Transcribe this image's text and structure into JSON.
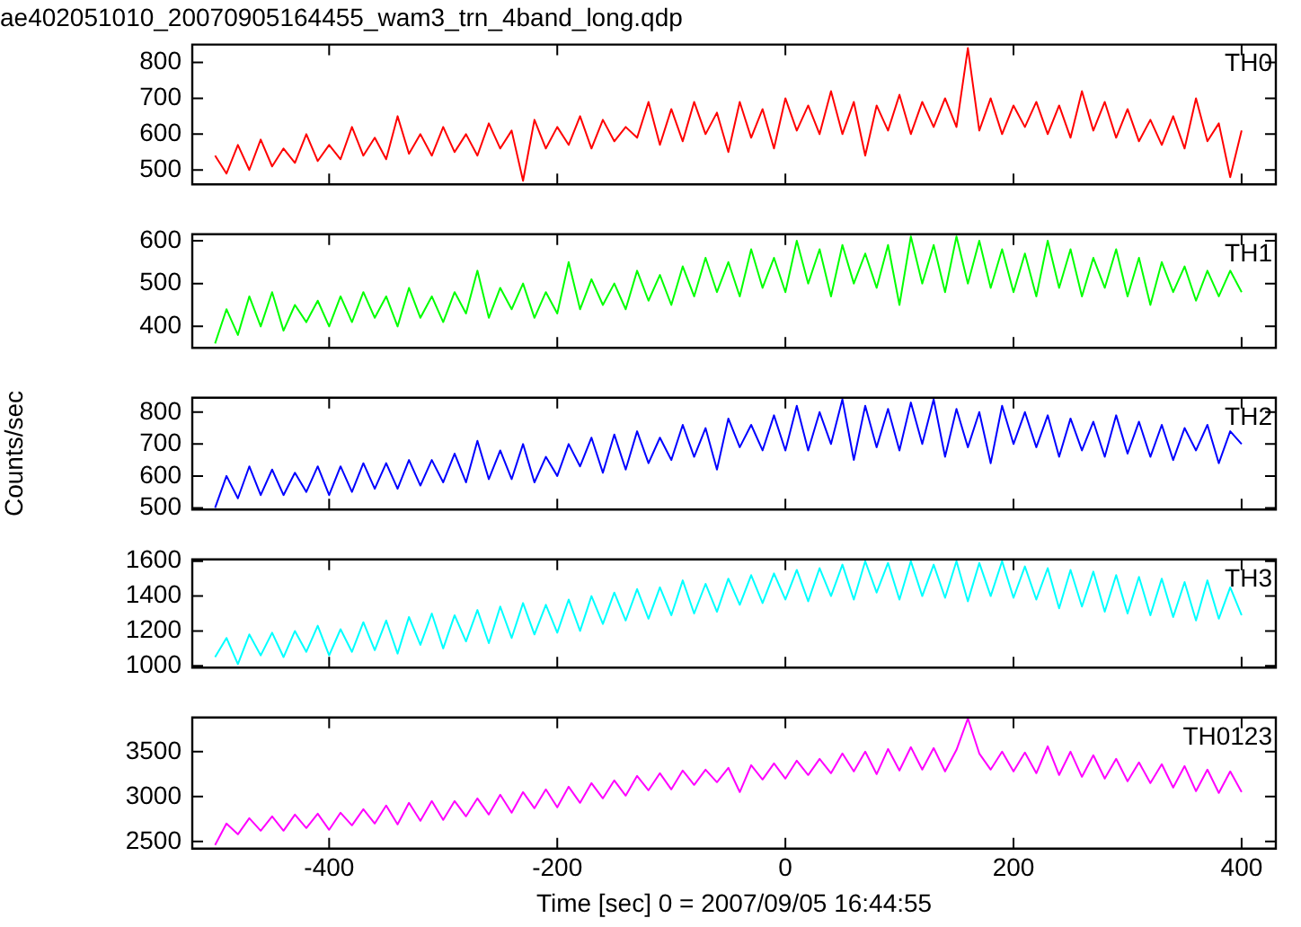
{
  "chart_data": [
    {
      "type": "line",
      "title": "ae402051010_20070905164455_wam3_trn_4band_long.qdp",
      "x": [
        -500,
        -490,
        -480,
        -470,
        -460,
        -450,
        -440,
        -430,
        -420,
        -410,
        -400,
        -390,
        -380,
        -370,
        -360,
        -350,
        -340,
        -330,
        -320,
        -310,
        -300,
        -290,
        -280,
        -270,
        -260,
        -250,
        -240,
        -230,
        -220,
        -210,
        -200,
        -190,
        -180,
        -170,
        -160,
        -150,
        -140,
        -130,
        -120,
        -110,
        -100,
        -90,
        -80,
        -70,
        -60,
        -50,
        -40,
        -30,
        -20,
        -10,
        0,
        10,
        20,
        30,
        40,
        50,
        60,
        70,
        80,
        90,
        100,
        110,
        120,
        130,
        140,
        150,
        160,
        170,
        180,
        190,
        200,
        210,
        220,
        230,
        240,
        250,
        260,
        270,
        280,
        290,
        300,
        310,
        320,
        330,
        340,
        350,
        360,
        370,
        380,
        390,
        400
      ],
      "series": [
        {
          "name": "TH0",
          "color": "#ff0000",
          "values": [
            540,
            490,
            570,
            500,
            585,
            510,
            560,
            520,
            600,
            525,
            570,
            530,
            620,
            540,
            590,
            530,
            650,
            545,
            600,
            540,
            620,
            550,
            600,
            540,
            630,
            560,
            610,
            470,
            640,
            560,
            620,
            570,
            650,
            560,
            640,
            580,
            620,
            590,
            690,
            570,
            670,
            580,
            690,
            600,
            660,
            550,
            690,
            590,
            670,
            560,
            700,
            610,
            680,
            600,
            720,
            600,
            690,
            540,
            680,
            610,
            710,
            600,
            690,
            620,
            700,
            620,
            840,
            610,
            700,
            600,
            680,
            620,
            690,
            600,
            680,
            590,
            720,
            610,
            690,
            590,
            670,
            580,
            640,
            570,
            650,
            560,
            700,
            580,
            630,
            480,
            610
          ]
        }
      ],
      "xlim": [
        -520,
        430
      ],
      "xticks": [
        -400,
        -200,
        0,
        200,
        400
      ],
      "ylim": [
        460,
        850
      ],
      "yticks": [
        500,
        600,
        700,
        800
      ],
      "tick_labels": "y"
    },
    {
      "type": "line",
      "x": [
        -500,
        -490,
        -480,
        -470,
        -460,
        -450,
        -440,
        -430,
        -420,
        -410,
        -400,
        -390,
        -380,
        -370,
        -360,
        -350,
        -340,
        -330,
        -320,
        -310,
        -300,
        -290,
        -280,
        -270,
        -260,
        -250,
        -240,
        -230,
        -220,
        -210,
        -200,
        -190,
        -180,
        -170,
        -160,
        -150,
        -140,
        -130,
        -120,
        -110,
        -100,
        -90,
        -80,
        -70,
        -60,
        -50,
        -40,
        -30,
        -20,
        -10,
        0,
        10,
        20,
        30,
        40,
        50,
        60,
        70,
        80,
        90,
        100,
        110,
        120,
        130,
        140,
        150,
        160,
        170,
        180,
        190,
        200,
        210,
        220,
        230,
        240,
        250,
        260,
        270,
        280,
        290,
        300,
        310,
        320,
        330,
        340,
        350,
        360,
        370,
        380,
        390,
        400
      ],
      "series": [
        {
          "name": "TH1",
          "color": "#00ff00",
          "values": [
            360,
            440,
            380,
            470,
            400,
            480,
            390,
            450,
            410,
            460,
            400,
            470,
            410,
            480,
            420,
            470,
            400,
            490,
            420,
            470,
            410,
            480,
            430,
            530,
            420,
            490,
            440,
            500,
            420,
            480,
            430,
            550,
            440,
            510,
            450,
            500,
            440,
            530,
            460,
            520,
            450,
            540,
            470,
            560,
            480,
            550,
            470,
            580,
            490,
            560,
            480,
            600,
            500,
            580,
            470,
            590,
            500,
            570,
            490,
            590,
            450,
            610,
            500,
            590,
            480,
            610,
            500,
            600,
            490,
            580,
            480,
            570,
            470,
            600,
            490,
            580,
            470,
            560,
            490,
            580,
            470,
            560,
            450,
            550,
            480,
            540,
            460,
            530,
            470,
            530,
            480
          ]
        }
      ],
      "xlim": [
        -520,
        430
      ],
      "xticks": [
        -400,
        -200,
        0,
        200,
        400
      ],
      "ylim": [
        350,
        615
      ],
      "yticks": [
        400,
        500,
        600
      ],
      "tick_labels": "y"
    },
    {
      "type": "line",
      "ylabel": "Counts/sec",
      "x": [
        -500,
        -490,
        -480,
        -470,
        -460,
        -450,
        -440,
        -430,
        -420,
        -410,
        -400,
        -390,
        -380,
        -370,
        -360,
        -350,
        -340,
        -330,
        -320,
        -310,
        -300,
        -290,
        -280,
        -270,
        -260,
        -250,
        -240,
        -230,
        -220,
        -210,
        -200,
        -190,
        -180,
        -170,
        -160,
        -150,
        -140,
        -130,
        -120,
        -110,
        -100,
        -90,
        -80,
        -70,
        -60,
        -50,
        -40,
        -30,
        -20,
        -10,
        0,
        10,
        20,
        30,
        40,
        50,
        60,
        70,
        80,
        90,
        100,
        110,
        120,
        130,
        140,
        150,
        160,
        170,
        180,
        190,
        200,
        210,
        220,
        230,
        240,
        250,
        260,
        270,
        280,
        290,
        300,
        310,
        320,
        330,
        340,
        350,
        360,
        370,
        380,
        390,
        400
      ],
      "series": [
        {
          "name": "TH2",
          "color": "#0000ff",
          "values": [
            500,
            600,
            530,
            630,
            540,
            620,
            540,
            610,
            550,
            630,
            540,
            630,
            550,
            640,
            560,
            640,
            560,
            650,
            570,
            650,
            580,
            670,
            580,
            710,
            590,
            680,
            590,
            700,
            580,
            660,
            600,
            700,
            630,
            720,
            610,
            730,
            620,
            740,
            640,
            720,
            650,
            760,
            660,
            750,
            620,
            780,
            690,
            760,
            680,
            790,
            680,
            820,
            680,
            800,
            700,
            840,
            650,
            820,
            690,
            810,
            680,
            830,
            700,
            840,
            660,
            810,
            690,
            800,
            640,
            820,
            700,
            800,
            690,
            790,
            660,
            780,
            680,
            770,
            660,
            790,
            670,
            770,
            660,
            760,
            650,
            750,
            680,
            760,
            640,
            740,
            700
          ]
        }
      ],
      "xlim": [
        -520,
        430
      ],
      "xticks": [
        -400,
        -200,
        0,
        200,
        400
      ],
      "ylim": [
        495,
        845
      ],
      "yticks": [
        500,
        600,
        700,
        800
      ],
      "tick_labels": "y"
    },
    {
      "type": "line",
      "x": [
        -500,
        -490,
        -480,
        -470,
        -460,
        -450,
        -440,
        -430,
        -420,
        -410,
        -400,
        -390,
        -380,
        -370,
        -360,
        -350,
        -340,
        -330,
        -320,
        -310,
        -300,
        -290,
        -280,
        -270,
        -260,
        -250,
        -240,
        -230,
        -220,
        -210,
        -200,
        -190,
        -180,
        -170,
        -160,
        -150,
        -140,
        -130,
        -120,
        -110,
        -100,
        -90,
        -80,
        -70,
        -60,
        -50,
        -40,
        -30,
        -20,
        -10,
        0,
        10,
        20,
        30,
        40,
        50,
        60,
        70,
        80,
        90,
        100,
        110,
        120,
        130,
        140,
        150,
        160,
        170,
        180,
        190,
        200,
        210,
        220,
        230,
        240,
        250,
        260,
        270,
        280,
        290,
        300,
        310,
        320,
        330,
        340,
        350,
        360,
        370,
        380,
        390,
        400
      ],
      "series": [
        {
          "name": "TH3",
          "color": "#00ffff",
          "values": [
            1050,
            1160,
            1010,
            1180,
            1060,
            1190,
            1050,
            1200,
            1080,
            1230,
            1060,
            1210,
            1080,
            1250,
            1090,
            1260,
            1070,
            1280,
            1120,
            1300,
            1100,
            1290,
            1140,
            1320,
            1130,
            1340,
            1160,
            1360,
            1180,
            1350,
            1190,
            1380,
            1200,
            1400,
            1240,
            1420,
            1260,
            1440,
            1270,
            1450,
            1290,
            1490,
            1300,
            1470,
            1310,
            1500,
            1350,
            1520,
            1360,
            1530,
            1380,
            1550,
            1370,
            1560,
            1400,
            1580,
            1380,
            1600,
            1420,
            1590,
            1380,
            1600,
            1400,
            1580,
            1390,
            1600,
            1370,
            1590,
            1400,
            1600,
            1390,
            1570,
            1380,
            1560,
            1330,
            1550,
            1340,
            1540,
            1310,
            1520,
            1300,
            1510,
            1290,
            1500,
            1280,
            1480,
            1260,
            1490,
            1270,
            1450,
            1290
          ]
        }
      ],
      "xlim": [
        -520,
        430
      ],
      "xticks": [
        -400,
        -200,
        0,
        200,
        400
      ],
      "ylim": [
        990,
        1610
      ],
      "yticks": [
        1000,
        1200,
        1400,
        1600
      ],
      "tick_labels": "y"
    },
    {
      "type": "line",
      "xlabel": "Time [sec] 0 = 2007/09/05 16:44:55",
      "x": [
        -500,
        -490,
        -480,
        -470,
        -460,
        -450,
        -440,
        -430,
        -420,
        -410,
        -400,
        -390,
        -380,
        -370,
        -360,
        -350,
        -340,
        -330,
        -320,
        -310,
        -300,
        -290,
        -280,
        -270,
        -260,
        -250,
        -240,
        -230,
        -220,
        -210,
        -200,
        -190,
        -180,
        -170,
        -160,
        -150,
        -140,
        -130,
        -120,
        -110,
        -100,
        -90,
        -80,
        -70,
        -60,
        -50,
        -40,
        -30,
        -20,
        -10,
        0,
        10,
        20,
        30,
        40,
        50,
        60,
        70,
        80,
        90,
        100,
        110,
        120,
        130,
        140,
        150,
        160,
        170,
        180,
        190,
        200,
        210,
        220,
        230,
        240,
        250,
        260,
        270,
        280,
        290,
        300,
        310,
        320,
        330,
        340,
        350,
        360,
        370,
        380,
        390,
        400
      ],
      "series": [
        {
          "name": "TH0123",
          "color": "#ff00ff",
          "values": [
            2460,
            2700,
            2580,
            2760,
            2620,
            2780,
            2620,
            2800,
            2650,
            2810,
            2630,
            2820,
            2680,
            2860,
            2700,
            2900,
            2690,
            2930,
            2730,
            2950,
            2740,
            2950,
            2780,
            2980,
            2800,
            3020,
            2820,
            3050,
            2870,
            3080,
            2880,
            3110,
            2930,
            3150,
            2980,
            3180,
            3010,
            3230,
            3070,
            3260,
            3080,
            3290,
            3130,
            3300,
            3160,
            3320,
            3050,
            3350,
            3190,
            3370,
            3200,
            3400,
            3240,
            3420,
            3260,
            3480,
            3280,
            3500,
            3250,
            3530,
            3290,
            3550,
            3300,
            3540,
            3280,
            3520,
            3870,
            3480,
            3300,
            3500,
            3280,
            3490,
            3260,
            3560,
            3240,
            3500,
            3220,
            3460,
            3200,
            3420,
            3170,
            3380,
            3150,
            3360,
            3100,
            3340,
            3060,
            3300,
            3040,
            3280,
            3050
          ]
        }
      ],
      "xlim": [
        -520,
        430
      ],
      "xticks": [
        -400,
        -200,
        0,
        200,
        400
      ],
      "ylim": [
        2420,
        3880
      ],
      "yticks": [
        2500,
        3000,
        3500
      ]
    }
  ]
}
